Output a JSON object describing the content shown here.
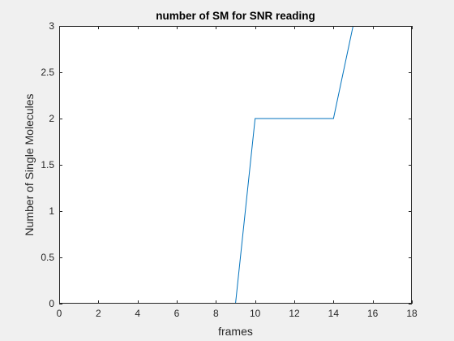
{
  "chart_data": {
    "type": "line",
    "title": "number of SM for SNR reading",
    "xlabel": "frames",
    "ylabel": "Number of Single Molecules",
    "xlim": [
      0,
      18
    ],
    "ylim": [
      0,
      3
    ],
    "xticks": [
      0,
      2,
      4,
      6,
      8,
      10,
      12,
      14,
      16,
      18
    ],
    "yticks": [
      0,
      0.5,
      1,
      1.5,
      2,
      2.5,
      3
    ],
    "xtick_labels": [
      "0",
      "2",
      "4",
      "6",
      "8",
      "10",
      "12",
      "14",
      "16",
      "18"
    ],
    "ytick_labels": [
      "0",
      "0.5",
      "1",
      "1.5",
      "2",
      "2.5",
      "3"
    ],
    "grid": false,
    "legend": "none",
    "series": [
      {
        "x": [
          1,
          2,
          3,
          4,
          5,
          6,
          7,
          8,
          9,
          10,
          11,
          12,
          13,
          14,
          15,
          16,
          17
        ],
        "y": [
          0,
          0,
          0,
          0,
          0,
          0,
          0,
          0,
          0,
          2,
          2,
          2,
          2,
          2,
          3,
          3,
          3
        ],
        "color": "#0072bd"
      }
    ],
    "colors": {
      "figure_bg": "#f0f0f0",
      "axes_bg": "#ffffff",
      "axis": "#262626"
    }
  }
}
